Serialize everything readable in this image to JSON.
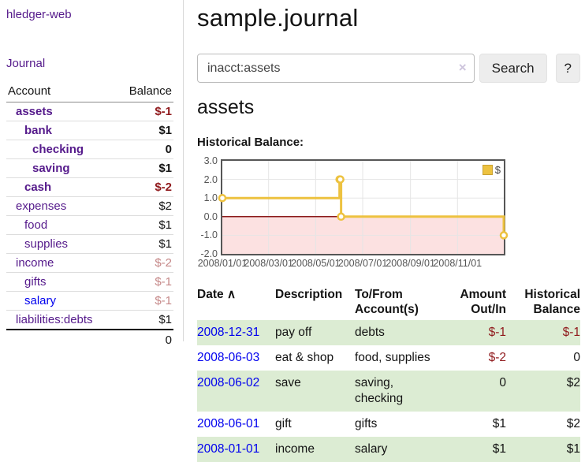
{
  "app": {
    "brand": "hledger-web",
    "nav_journal": "Journal"
  },
  "colors": {
    "accent_purple": "#551a8b",
    "link_blue": "#0000ee",
    "negative_dark": "#901a1d",
    "negative_muted": "#c58787",
    "row_green": "#dcecd3",
    "series_gold": "#edc240",
    "zero_line_red": "#8b1a1a",
    "negative_region_pink": "#fbdede"
  },
  "sidebar": {
    "table_headers": {
      "account": "Account",
      "balance": "Balance"
    },
    "accounts": [
      {
        "name": "assets",
        "balance": "$-1",
        "indent": 1,
        "in_query": true,
        "negative": true,
        "dim": false,
        "unvisited": false
      },
      {
        "name": "bank",
        "balance": "$1",
        "indent": 2,
        "in_query": true,
        "negative": false,
        "dim": false,
        "unvisited": false
      },
      {
        "name": "checking",
        "balance": "0",
        "indent": 3,
        "in_query": true,
        "negative": false,
        "dim": false,
        "unvisited": false
      },
      {
        "name": "saving",
        "balance": "$1",
        "indent": 3,
        "in_query": true,
        "negative": false,
        "dim": false,
        "unvisited": false
      },
      {
        "name": "cash",
        "balance": "$-2",
        "indent": 2,
        "in_query": true,
        "negative": true,
        "dim": false,
        "unvisited": false
      },
      {
        "name": "expenses",
        "balance": "$2",
        "indent": 1,
        "in_query": false,
        "negative": false,
        "dim": false,
        "unvisited": false
      },
      {
        "name": "food",
        "balance": "$1",
        "indent": 2,
        "in_query": false,
        "negative": false,
        "dim": false,
        "unvisited": false
      },
      {
        "name": "supplies",
        "balance": "$1",
        "indent": 2,
        "in_query": false,
        "negative": false,
        "dim": false,
        "unvisited": false
      },
      {
        "name": "income",
        "balance": "$-2",
        "indent": 1,
        "in_query": false,
        "negative": true,
        "dim": true,
        "unvisited": false
      },
      {
        "name": "gifts",
        "balance": "$-1",
        "indent": 2,
        "in_query": false,
        "negative": true,
        "dim": true,
        "unvisited": false
      },
      {
        "name": "salary",
        "balance": "$-1",
        "indent": 2,
        "in_query": false,
        "negative": true,
        "dim": true,
        "unvisited": true
      },
      {
        "name": "liabilities:debts",
        "balance": "$1",
        "indent": 1,
        "in_query": false,
        "negative": false,
        "dim": false,
        "unvisited": false
      }
    ],
    "total": "0"
  },
  "header": {
    "title": "sample.journal"
  },
  "search": {
    "value": "inacct:assets",
    "clear_icon": "×",
    "button_label": "Search",
    "help_label": "?"
  },
  "account_page": {
    "title": "assets",
    "section_label": "Historical Balance:"
  },
  "chart_data": {
    "type": "line",
    "title": "Historical Balance",
    "step": true,
    "series": [
      {
        "name": "$",
        "color": "#edc240",
        "points": [
          [
            "2008/01/01",
            1
          ],
          [
            "2008/06/01",
            2
          ],
          [
            "2008/06/02",
            2
          ],
          [
            "2008/06/03",
            0
          ],
          [
            "2008/12/31",
            -1
          ]
        ]
      }
    ],
    "xlim": [
      "2008/01/01",
      "2008/12/31"
    ],
    "ylim": [
      -2,
      3
    ],
    "xticks": [
      "2008/01/01",
      "2008/03/01",
      "2008/05/01",
      "2008/07/01",
      "2008/09/01",
      "2008/11/01"
    ],
    "yticks": [
      "3.0",
      "2.0",
      "1.0",
      "0.0",
      "-1.0",
      "-2.0"
    ],
    "grid": true,
    "legend_position": "top-right",
    "negative_region_below": 0
  },
  "register": {
    "headers": {
      "date": "Date",
      "sort_icon": "∧",
      "description": "Description",
      "accounts": "To/From Account(s)",
      "amount": "Amount Out/In",
      "balance": "Historical Balance"
    },
    "rows": [
      {
        "date": "2008-12-31",
        "description": "pay off",
        "accounts": "debts",
        "amount": "$-1",
        "amount_negative": true,
        "balance": "$-1",
        "balance_negative": true
      },
      {
        "date": "2008-06-03",
        "description": "eat & shop",
        "accounts": "food, supplies",
        "amount": "$-2",
        "amount_negative": true,
        "balance": "0",
        "balance_negative": false
      },
      {
        "date": "2008-06-02",
        "description": "save",
        "accounts": "saving, checking",
        "amount": "0",
        "amount_negative": false,
        "balance": "$2",
        "balance_negative": false
      },
      {
        "date": "2008-06-01",
        "description": "gift",
        "accounts": "gifts",
        "amount": "$1",
        "amount_negative": false,
        "balance": "$2",
        "balance_negative": false
      },
      {
        "date": "2008-01-01",
        "description": "income",
        "accounts": "salary",
        "amount": "$1",
        "amount_negative": false,
        "balance": "$1",
        "balance_negative": false
      }
    ]
  }
}
